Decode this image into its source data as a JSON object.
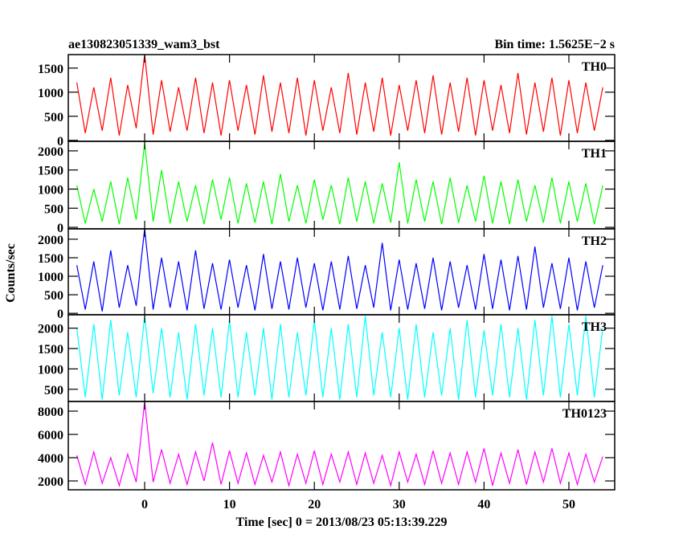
{
  "chart_data": {
    "type": "line",
    "title": "ae130823051339_wam3_bst",
    "subtitle": "Bin time: 1.5625E−2 s",
    "xlabel": "Time [sec] 0 = 2013/08/23 05:13:39.229",
    "ylabel": "Counts/sec",
    "xlim": [
      -9,
      55.4
    ],
    "xticks": [
      0,
      10,
      20,
      30,
      40,
      50
    ],
    "x": [
      -8,
      -7,
      -6,
      -5,
      -4,
      -3,
      -2,
      -1,
      0,
      1,
      2,
      3,
      4,
      5,
      6,
      7,
      8,
      9,
      10,
      11,
      12,
      13,
      14,
      15,
      16,
      17,
      18,
      19,
      20,
      21,
      22,
      23,
      24,
      25,
      26,
      27,
      28,
      29,
      30,
      31,
      32,
      33,
      34,
      35,
      36,
      37,
      38,
      39,
      40,
      41,
      42,
      43,
      44,
      45,
      46,
      47,
      48,
      49,
      50,
      51,
      52,
      53,
      54
    ],
    "series": [
      {
        "name": "TH0",
        "color": "#ff0000",
        "ylim": [
          -20,
          1780
        ],
        "yticks": [
          0,
          500,
          1000,
          1500
        ],
        "values": [
          1200,
          150,
          1100,
          200,
          1300,
          100,
          1150,
          250,
          1780,
          120,
          1250,
          180,
          1100,
          200,
          1300,
          150,
          1200,
          100,
          1250,
          200,
          1150,
          120,
          1350,
          180,
          1200,
          150,
          1300,
          100,
          1250,
          200,
          1100,
          150,
          1400,
          120,
          1200,
          180,
          1300,
          100,
          1150,
          200,
          1250,
          150,
          1350,
          120,
          1200,
          180,
          1300,
          100,
          1250,
          200,
          1150,
          150,
          1400,
          120,
          1200,
          180,
          1300,
          100,
          1250,
          150,
          1200,
          200,
          1100
        ]
      },
      {
        "name": "TH1",
        "color": "#00ff00",
        "ylim": [
          -40,
          2250
        ],
        "yticks": [
          0,
          500,
          1000,
          1500,
          2000
        ],
        "values": [
          1100,
          100,
          1000,
          150,
          1200,
          80,
          1300,
          200,
          2200,
          150,
          1500,
          100,
          1200,
          150,
          1100,
          80,
          1250,
          200,
          1300,
          100,
          1150,
          120,
          1200,
          80,
          1400,
          150,
          1100,
          100,
          1250,
          200,
          1100,
          80,
          1300,
          150,
          1200,
          100,
          1150,
          120,
          1700,
          100,
          1250,
          150,
          1200,
          80,
          1300,
          120,
          1100,
          150,
          1350,
          100,
          1200,
          80,
          1250,
          150,
          1100,
          120,
          1300,
          100,
          1200,
          150,
          1150,
          80,
          1100
        ]
      },
      {
        "name": "TH2",
        "color": "#0000ff",
        "ylim": [
          -40,
          2280
        ],
        "yticks": [
          0,
          500,
          1000,
          1500,
          2000
        ],
        "values": [
          1300,
          100,
          1400,
          50,
          1700,
          150,
          1300,
          200,
          2280,
          100,
          1500,
          150,
          1400,
          80,
          1700,
          120,
          1350,
          100,
          1450,
          150,
          1300,
          80,
          1600,
          120,
          1400,
          100,
          1500,
          150,
          1350,
          80,
          1400,
          100,
          1550,
          120,
          1300,
          150,
          1900,
          80,
          1450,
          100,
          1350,
          120,
          1500,
          80,
          1400,
          150,
          1300,
          100,
          1600,
          120,
          1450,
          80,
          1550,
          100,
          1800,
          150,
          1350,
          120,
          1500,
          80,
          1400,
          150,
          1300
        ]
      },
      {
        "name": "TH3",
        "color": "#00ffff",
        "ylim": [
          200,
          2330
        ],
        "yticks": [
          500,
          1000,
          1500,
          2000
        ],
        "values": [
          2000,
          300,
          2100,
          250,
          2200,
          350,
          1900,
          300,
          2300,
          400,
          2000,
          300,
          1900,
          250,
          2100,
          350,
          2000,
          300,
          2200,
          300,
          1900,
          350,
          2000,
          250,
          2100,
          300,
          1900,
          350,
          2200,
          300,
          2000,
          250,
          2100,
          300,
          2300,
          350,
          1900,
          300,
          2000,
          250,
          2100,
          300,
          1900,
          350,
          2000,
          250,
          2200,
          300,
          1950,
          350,
          2100,
          300,
          2000,
          250,
          2200,
          350,
          2300,
          300,
          2100,
          350,
          2300,
          300,
          2000
        ]
      },
      {
        "name": "TH0123",
        "color": "#ff00ff",
        "ylim": [
          1240,
          8830
        ],
        "yticks": [
          2000,
          4000,
          6000,
          8000
        ],
        "values": [
          4200,
          1700,
          4500,
          1800,
          4000,
          1600,
          4300,
          1900,
          8800,
          1900,
          4700,
          1800,
          4300,
          1700,
          4500,
          2000,
          5300,
          1700,
          4600,
          1800,
          4400,
          1700,
          4200,
          1900,
          4500,
          1600,
          4300,
          1800,
          4600,
          1700,
          4300,
          1900,
          4500,
          1700,
          4400,
          1800,
          4200,
          1600,
          4500,
          1900,
          4300,
          1700,
          4600,
          1800,
          4400,
          1700,
          4500,
          1900,
          4800,
          1600,
          4400,
          1800,
          4700,
          1700,
          4500,
          1900,
          4800,
          1800,
          4400,
          1700,
          4300,
          1900,
          4100
        ]
      }
    ]
  }
}
